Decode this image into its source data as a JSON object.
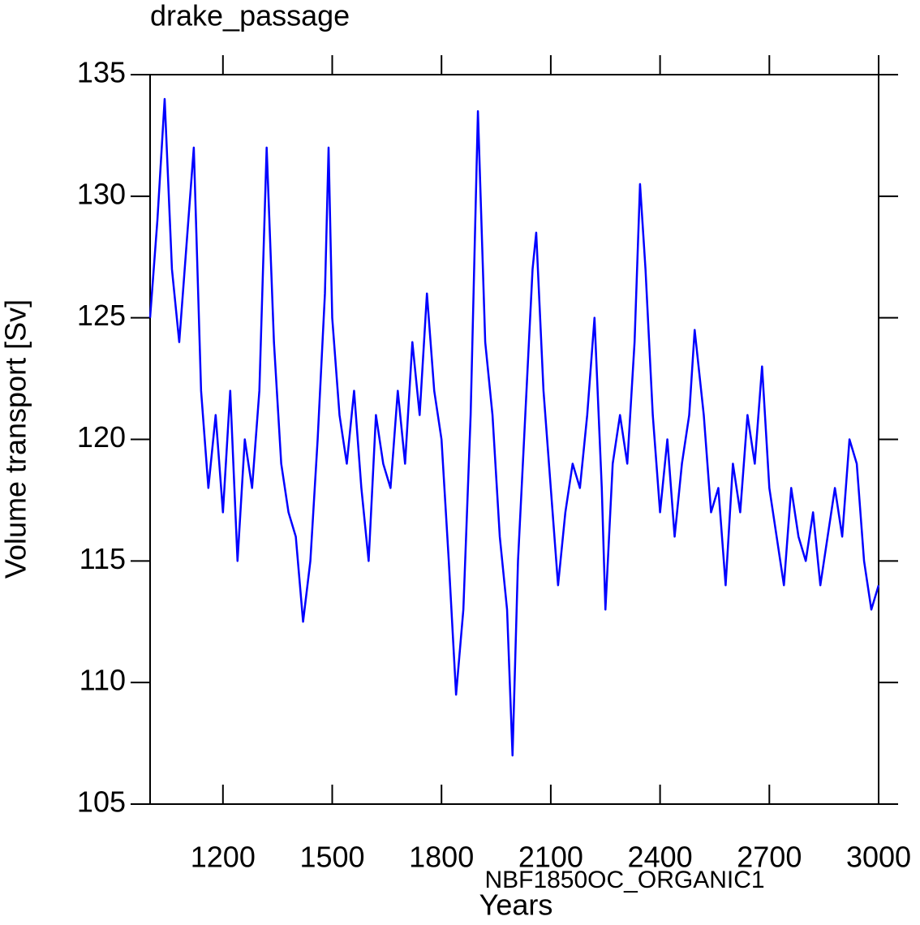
{
  "chart_data": {
    "type": "line",
    "title": "drake_passage",
    "xlabel": "Years",
    "ylabel": "Volume transport [Sv]",
    "annotation": "NBF1850OC_ORGANIC1",
    "annotation_color": "#0000ff",
    "x": [
      1000,
      1020,
      1040,
      1060,
      1080,
      1100,
      1120,
      1140,
      1160,
      1180,
      1200,
      1220,
      1240,
      1260,
      1280,
      1300,
      1320,
      1340,
      1360,
      1380,
      1400,
      1420,
      1440,
      1460,
      1480,
      1490,
      1500,
      1520,
      1540,
      1560,
      1580,
      1600,
      1620,
      1640,
      1660,
      1680,
      1700,
      1720,
      1740,
      1760,
      1780,
      1800,
      1820,
      1840,
      1860,
      1880,
      1900,
      1920,
      1940,
      1960,
      1980,
      1995,
      2010,
      2030,
      2050,
      2060,
      2080,
      2100,
      2120,
      2140,
      2160,
      2180,
      2200,
      2220,
      2240,
      2250,
      2270,
      2290,
      2310,
      2330,
      2345,
      2360,
      2380,
      2400,
      2420,
      2440,
      2460,
      2480,
      2495,
      2520,
      2540,
      2560,
      2580,
      2600,
      2620,
      2640,
      2660,
      2680,
      2700,
      2720,
      2740,
      2760,
      2780,
      2800,
      2820,
      2840,
      2860,
      2880,
      2900,
      2920,
      2940,
      2960,
      2980,
      3000
    ],
    "series": [
      {
        "name": "drake_passage",
        "color": "#0000ff",
        "values": [
          125,
          129,
          134,
          127,
          124,
          128,
          132,
          122,
          118,
          121,
          117,
          122,
          115,
          120,
          118,
          122,
          132,
          124,
          119,
          117,
          116,
          112.5,
          115,
          120,
          126,
          132,
          125,
          121,
          119,
          122,
          118,
          115,
          121,
          119,
          118,
          122,
          119,
          124,
          121,
          126,
          122,
          120,
          115,
          109.5,
          113,
          121,
          133.5,
          124,
          121,
          116,
          113,
          107,
          115,
          121,
          127,
          128.5,
          122,
          118,
          114,
          117,
          119,
          118,
          121,
          125,
          118,
          113,
          119,
          121,
          119,
          124,
          130.5,
          127,
          121,
          117,
          120,
          116,
          119,
          121,
          124.5,
          121,
          117,
          118,
          114,
          119,
          117,
          121,
          119,
          123,
          118,
          116,
          114,
          118,
          116,
          115,
          117,
          114,
          116,
          118,
          116,
          120,
          119,
          115,
          113,
          114
        ]
      }
    ],
    "xlim": [
      1000,
      3000
    ],
    "xticks": [
      1200,
      1500,
      1800,
      2100,
      2400,
      2700,
      3000
    ],
    "ylim": [
      105,
      135
    ],
    "yticks": [
      105,
      110,
      115,
      120,
      125,
      130,
      135
    ]
  }
}
